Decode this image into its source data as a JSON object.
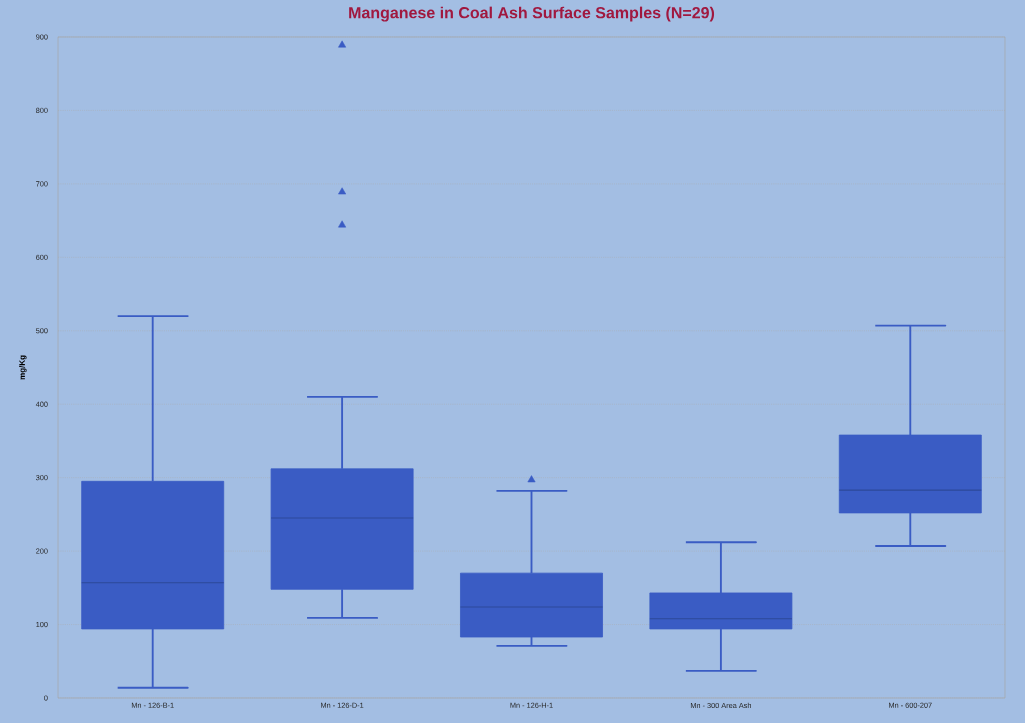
{
  "chart_data": {
    "type": "box",
    "title": "Manganese in Coal Ash Surface Samples (N=29)",
    "ylabel": "mg/Kg",
    "categories": [
      "Mn - 126-B-1",
      "Mn - 126-D-1",
      "Mn - 126-H-1",
      "Mn - 300 Area Ash",
      "Mn - 600-207"
    ],
    "series": [
      {
        "color": "#3a5cc4",
        "boxes": [
          {
            "low": 14,
            "q1": 94,
            "median": 157,
            "q3": 295,
            "high": 520
          },
          {
            "low": 109,
            "q1": 148,
            "median": 245,
            "q3": 312,
            "high": 410,
            "outliers": [
              889,
              689,
              644
            ]
          },
          {
            "low": 71,
            "q1": 83,
            "median": 124,
            "q3": 170,
            "high": 282,
            "outliers": [
              297
            ]
          },
          {
            "low": 37,
            "q1": 94,
            "median": 108,
            "q3": 143,
            "high": 212
          },
          {
            "low": 207,
            "q1": 252,
            "median": 283,
            "q3": 358,
            "high": 507
          }
        ]
      }
    ],
    "ylim": [
      0,
      900
    ],
    "yticks": [
      0,
      100,
      200,
      300,
      400,
      500,
      600,
      700,
      800,
      900
    ],
    "grid": "y",
    "marker": "triangle"
  }
}
